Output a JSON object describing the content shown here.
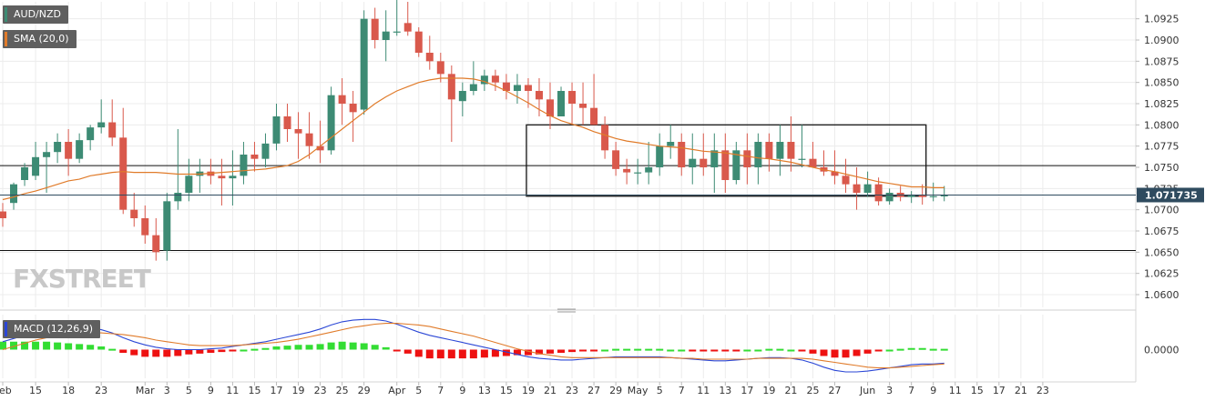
{
  "brand": {
    "text": "FXSTREET"
  },
  "chart_data": {
    "type": "candlestick",
    "symbol": "AUD/NZD",
    "indicator_labels": {
      "sma": "SMA (20,0)",
      "macd": "MACD (12,26,9)"
    },
    "colors": {
      "up": "#3d8b74",
      "down": "#d9594c",
      "sma": "#e07b2a",
      "macd_line": "#2b47d6",
      "signal_line": "#e07b2a",
      "hist_pos": "#33dd33",
      "hist_neg": "#ee1111",
      "last_price_tag": "#2f4b5f"
    },
    "y_axis": {
      "min": 1.0585,
      "max": 1.0945,
      "ticks": [
        "1.0925",
        "1.0900",
        "1.0875",
        "1.0850",
        "1.0825",
        "1.0800",
        "1.0775",
        "1.0750",
        "1.0725",
        "1.0700",
        "1.0675",
        "1.0650",
        "1.0625",
        "1.0600"
      ]
    },
    "last_price": "1.071735",
    "macd_zero_label": "0.0000",
    "horizontal_lines": [
      1.0752,
      1.0652
    ],
    "rectangle": {
      "from_index": 48,
      "to_index": 84,
      "high": 1.08,
      "low": 1.0716
    },
    "x_labels": [
      {
        "i": 0,
        "t": "Feb"
      },
      {
        "i": 3,
        "t": "15"
      },
      {
        "i": 6,
        "t": "18"
      },
      {
        "i": 9,
        "t": "23"
      },
      {
        "i": 13,
        "t": "Mar"
      },
      {
        "i": 15,
        "t": "3"
      },
      {
        "i": 17,
        "t": "5"
      },
      {
        "i": 19,
        "t": "9"
      },
      {
        "i": 21,
        "t": "11"
      },
      {
        "i": 23,
        "t": "15"
      },
      {
        "i": 25,
        "t": "17"
      },
      {
        "i": 27,
        "t": "19"
      },
      {
        "i": 29,
        "t": "23"
      },
      {
        "i": 31,
        "t": "25"
      },
      {
        "i": 33,
        "t": "29"
      },
      {
        "i": 36,
        "t": "Apr"
      },
      {
        "i": 38,
        "t": "5"
      },
      {
        "i": 40,
        "t": "7"
      },
      {
        "i": 42,
        "t": "9"
      },
      {
        "i": 44,
        "t": "13"
      },
      {
        "i": 46,
        "t": "15"
      },
      {
        "i": 48,
        "t": "19"
      },
      {
        "i": 50,
        "t": "21"
      },
      {
        "i": 52,
        "t": "23"
      },
      {
        "i": 54,
        "t": "27"
      },
      {
        "i": 56,
        "t": "29"
      },
      {
        "i": 58,
        "t": "May"
      },
      {
        "i": 60,
        "t": "5"
      },
      {
        "i": 62,
        "t": "7"
      },
      {
        "i": 64,
        "t": "11"
      },
      {
        "i": 66,
        "t": "13"
      },
      {
        "i": 68,
        "t": "17"
      },
      {
        "i": 70,
        "t": "19"
      },
      {
        "i": 72,
        "t": "21"
      },
      {
        "i": 74,
        "t": "25"
      },
      {
        "i": 76,
        "t": "27"
      },
      {
        "i": 79,
        "t": "Jun"
      },
      {
        "i": 81,
        "t": "3"
      },
      {
        "i": 83,
        "t": "7"
      },
      {
        "i": 85,
        "t": "9"
      },
      {
        "i": 87,
        "t": "11"
      },
      {
        "i": 89,
        "t": "15"
      },
      {
        "i": 91,
        "t": "17"
      },
      {
        "i": 93,
        "t": "21"
      },
      {
        "i": 95,
        "t": "23"
      }
    ],
    "candles": [
      [
        1.0698,
        1.0708,
        1.068,
        1.069
      ],
      [
        1.0708,
        1.0732,
        1.07,
        1.073
      ],
      [
        1.0735,
        1.0755,
        1.0728,
        1.075
      ],
      [
        1.074,
        1.078,
        1.0735,
        1.0762
      ],
      [
        1.0762,
        1.078,
        1.072,
        1.0768
      ],
      [
        1.0768,
        1.079,
        1.0755,
        1.078
      ],
      [
        1.078,
        1.0795,
        1.074,
        1.076
      ],
      [
        1.076,
        1.079,
        1.0755,
        1.0782
      ],
      [
        1.0782,
        1.08,
        1.077,
        1.0797
      ],
      [
        1.0797,
        1.083,
        1.079,
        1.0803
      ],
      [
        1.0803,
        1.083,
        1.0775,
        1.0785
      ],
      [
        1.0785,
        1.082,
        1.0695,
        1.07
      ],
      [
        1.07,
        1.072,
        1.068,
        1.069
      ],
      [
        1.069,
        1.0705,
        1.066,
        1.067
      ],
      [
        1.067,
        1.069,
        1.064,
        1.065
      ],
      [
        1.0652,
        1.072,
        1.064,
        1.071
      ],
      [
        1.071,
        1.0795,
        1.07,
        1.072
      ],
      [
        1.072,
        1.076,
        1.071,
        1.074
      ],
      [
        1.074,
        1.076,
        1.072,
        1.0745
      ],
      [
        1.0745,
        1.076,
        1.073,
        1.074
      ],
      [
        1.074,
        1.076,
        1.0705,
        1.0737
      ],
      [
        1.0737,
        1.077,
        1.0705,
        1.074
      ],
      [
        1.074,
        1.078,
        1.073,
        1.0765
      ],
      [
        1.0765,
        1.078,
        1.0745,
        1.076
      ],
      [
        1.076,
        1.079,
        1.075,
        1.0778
      ],
      [
        1.0778,
        1.0825,
        1.077,
        1.081
      ],
      [
        1.081,
        1.0825,
        1.078,
        1.0795
      ],
      [
        1.0795,
        1.0815,
        1.076,
        1.079
      ],
      [
        1.079,
        1.0815,
        1.076,
        1.0775
      ],
      [
        1.0775,
        1.0805,
        1.0755,
        1.077
      ],
      [
        1.077,
        1.0845,
        1.0765,
        1.0835
      ],
      [
        1.0835,
        1.0855,
        1.08,
        1.0825
      ],
      [
        1.0825,
        1.084,
        1.078,
        1.0815
      ],
      [
        1.0818,
        1.0935,
        1.0812,
        1.0925
      ],
      [
        1.0925,
        1.0938,
        1.089,
        1.09
      ],
      [
        1.09,
        1.0935,
        1.0875,
        1.091
      ],
      [
        1.091,
        1.0975,
        1.0905,
        1.091
      ],
      [
        1.092,
        1.0945,
        1.0905,
        1.091
      ],
      [
        1.091,
        1.0915,
        1.088,
        1.0885
      ],
      [
        1.0885,
        1.0905,
        1.0865,
        1.0875
      ],
      [
        1.0875,
        1.0885,
        1.085,
        1.086
      ],
      [
        1.086,
        1.087,
        1.078,
        1.083
      ],
      [
        1.0828,
        1.085,
        1.081,
        1.084
      ],
      [
        1.084,
        1.0875,
        1.0835,
        1.0848
      ],
      [
        1.0848,
        1.0865,
        1.084,
        1.0858
      ],
      [
        1.0858,
        1.0865,
        1.084,
        1.085
      ],
      [
        1.085,
        1.086,
        1.083,
        1.084
      ],
      [
        1.084,
        1.086,
        1.0825,
        1.0847
      ],
      [
        1.0847,
        1.0855,
        1.082,
        1.084
      ],
      [
        1.084,
        1.0855,
        1.081,
        1.083
      ],
      [
        1.083,
        1.085,
        1.0795,
        1.081
      ],
      [
        1.081,
        1.0845,
        1.081,
        1.084
      ],
      [
        1.084,
        1.085,
        1.08,
        1.0825
      ],
      [
        1.0825,
        1.085,
        1.08,
        1.082
      ],
      [
        1.082,
        1.086,
        1.08,
        1.08
      ],
      [
        1.08,
        1.081,
        1.076,
        1.077
      ],
      [
        1.077,
        1.078,
        1.074,
        1.0748
      ],
      [
        1.0748,
        1.076,
        1.073,
        1.0744
      ],
      [
        1.0744,
        1.076,
        1.073,
        1.0744
      ],
      [
        1.0744,
        1.078,
        1.073,
        1.075
      ],
      [
        1.075,
        1.079,
        1.074,
        1.0775
      ],
      [
        1.0775,
        1.08,
        1.076,
        1.078
      ],
      [
        1.078,
        1.079,
        1.074,
        1.075
      ],
      [
        1.075,
        1.079,
        1.073,
        1.076
      ],
      [
        1.076,
        1.079,
        1.074,
        1.075
      ],
      [
        1.075,
        1.079,
        1.072,
        1.077
      ],
      [
        1.077,
        1.079,
        1.072,
        1.0735
      ],
      [
        1.0735,
        1.078,
        1.073,
        1.077
      ],
      [
        1.077,
        1.079,
        1.073,
        1.075
      ],
      [
        1.075,
        1.079,
        1.073,
        1.078
      ],
      [
        1.078,
        1.079,
        1.0745,
        1.076
      ],
      [
        1.076,
        1.08,
        1.074,
        1.078
      ],
      [
        1.078,
        1.081,
        1.0745,
        1.076
      ],
      [
        1.076,
        1.08,
        1.075,
        1.076
      ],
      [
        1.076,
        1.078,
        1.075,
        1.075
      ],
      [
        1.075,
        1.077,
        1.074,
        1.0745
      ],
      [
        1.0745,
        1.077,
        1.073,
        1.074
      ],
      [
        1.074,
        1.076,
        1.072,
        1.073
      ],
      [
        1.073,
        1.075,
        1.07,
        1.072
      ],
      [
        1.072,
        1.0745,
        1.0715,
        1.073
      ],
      [
        1.073,
        1.0738,
        1.0705,
        1.071
      ],
      [
        1.071,
        1.0725,
        1.0706,
        1.072
      ],
      [
        1.072,
        1.0728,
        1.071,
        1.0715
      ],
      [
        1.0715,
        1.0722,
        1.0708,
        1.0717
      ],
      [
        1.0717,
        1.073,
        1.0706,
        1.0715
      ],
      [
        1.0715,
        1.0732,
        1.071,
        1.0716
      ],
      [
        1.0716,
        1.0728,
        1.071,
        1.0717
      ]
    ],
    "sma": [
      1.0712,
      1.0715,
      1.0719,
      1.0722,
      1.0726,
      1.073,
      1.0734,
      1.0736,
      1.074,
      1.0742,
      1.0744,
      1.0745,
      1.0744,
      1.0744,
      1.0744,
      1.0743,
      1.0742,
      1.0742,
      1.0742,
      1.0743,
      1.0744,
      1.0745,
      1.0746,
      1.0747,
      1.0748,
      1.075,
      1.0752,
      1.0757,
      1.0765,
      1.0775,
      1.0785,
      1.0795,
      1.0805,
      1.0815,
      1.0825,
      1.0833,
      1.084,
      1.0845,
      1.085,
      1.0853,
      1.0855,
      1.0855,
      1.0855,
      1.0854,
      1.0851,
      1.0846,
      1.084,
      1.0833,
      1.0826,
      1.0818,
      1.0811,
      1.0805,
      1.0801,
      1.0797,
      1.0792,
      1.0788,
      1.0784,
      1.0781,
      1.0779,
      1.0777,
      1.0775,
      1.0774,
      1.0773,
      1.0771,
      1.0769,
      1.0768,
      1.0767,
      1.0765,
      1.0763,
      1.0761,
      1.076,
      1.0758,
      1.0756,
      1.0753,
      1.075,
      1.0747,
      1.0745,
      1.0742,
      1.0739,
      1.0736,
      1.0733,
      1.0731,
      1.0729,
      1.0727,
      1.0727,
      1.0726,
      1.0726
    ],
    "macd": [
      0.001,
      0.0014,
      0.0018,
      0.0022,
      0.0025,
      0.0027,
      0.0028,
      0.0028,
      0.0027,
      0.0025,
      0.0021,
      0.0015,
      0.001,
      0.0006,
      0.0003,
      0.0001,
      0.0,
      0.0,
      0.0,
      0.0001,
      0.0002,
      0.0004,
      0.0006,
      0.0008,
      0.001,
      0.0013,
      0.0016,
      0.0019,
      0.0022,
      0.0026,
      0.0031,
      0.0035,
      0.0037,
      0.0038,
      0.0038,
      0.0036,
      0.0032,
      0.0027,
      0.0022,
      0.0018,
      0.0015,
      0.0012,
      0.0009,
      0.0006,
      0.0003,
      0.0,
      -0.0003,
      -0.0006,
      -0.0009,
      -0.0011,
      -0.0012,
      -0.0013,
      -0.0013,
      -0.0012,
      -0.0011,
      -0.001,
      -0.0009,
      -0.0009,
      -0.0009,
      -0.0009,
      -0.0009,
      -0.001,
      -0.0011,
      -0.0012,
      -0.0013,
      -0.0014,
      -0.0014,
      -0.0013,
      -0.0012,
      -0.0011,
      -0.001,
      -0.001,
      -0.0011,
      -0.0013,
      -0.0017,
      -0.0022,
      -0.0026,
      -0.0028,
      -0.0028,
      -0.0027,
      -0.0025,
      -0.0023,
      -0.0021,
      -0.0019,
      -0.0018,
      -0.0018,
      -0.0017
    ],
    "signal": [
      0.0,
      0.0004,
      0.0008,
      0.0012,
      0.0015,
      0.0018,
      0.002,
      0.0021,
      0.0021,
      0.0021,
      0.002,
      0.0019,
      0.0017,
      0.0015,
      0.0012,
      0.001,
      0.0008,
      0.0006,
      0.0005,
      0.0005,
      0.0005,
      0.0005,
      0.0006,
      0.0007,
      0.0008,
      0.0009,
      0.0011,
      0.0013,
      0.0016,
      0.0019,
      0.0022,
      0.0025,
      0.0028,
      0.003,
      0.0032,
      0.0033,
      0.0033,
      0.0032,
      0.0031,
      0.0029,
      0.0026,
      0.0023,
      0.002,
      0.0017,
      0.0013,
      0.0009,
      0.0005,
      0.0001,
      -0.0002,
      -0.0005,
      -0.0007,
      -0.0009,
      -0.001,
      -0.001,
      -0.001,
      -0.001,
      -0.001,
      -0.001,
      -0.001,
      -0.001,
      -0.001,
      -0.001,
      -0.0011,
      -0.0011,
      -0.0012,
      -0.0012,
      -0.0012,
      -0.0012,
      -0.0012,
      -0.0011,
      -0.0011,
      -0.0011,
      -0.0011,
      -0.0011,
      -0.0012,
      -0.0014,
      -0.0016,
      -0.0018,
      -0.002,
      -0.0022,
      -0.0023,
      -0.0023,
      -0.0022,
      -0.0021,
      -0.002,
      -0.0019,
      -0.0018
    ]
  }
}
